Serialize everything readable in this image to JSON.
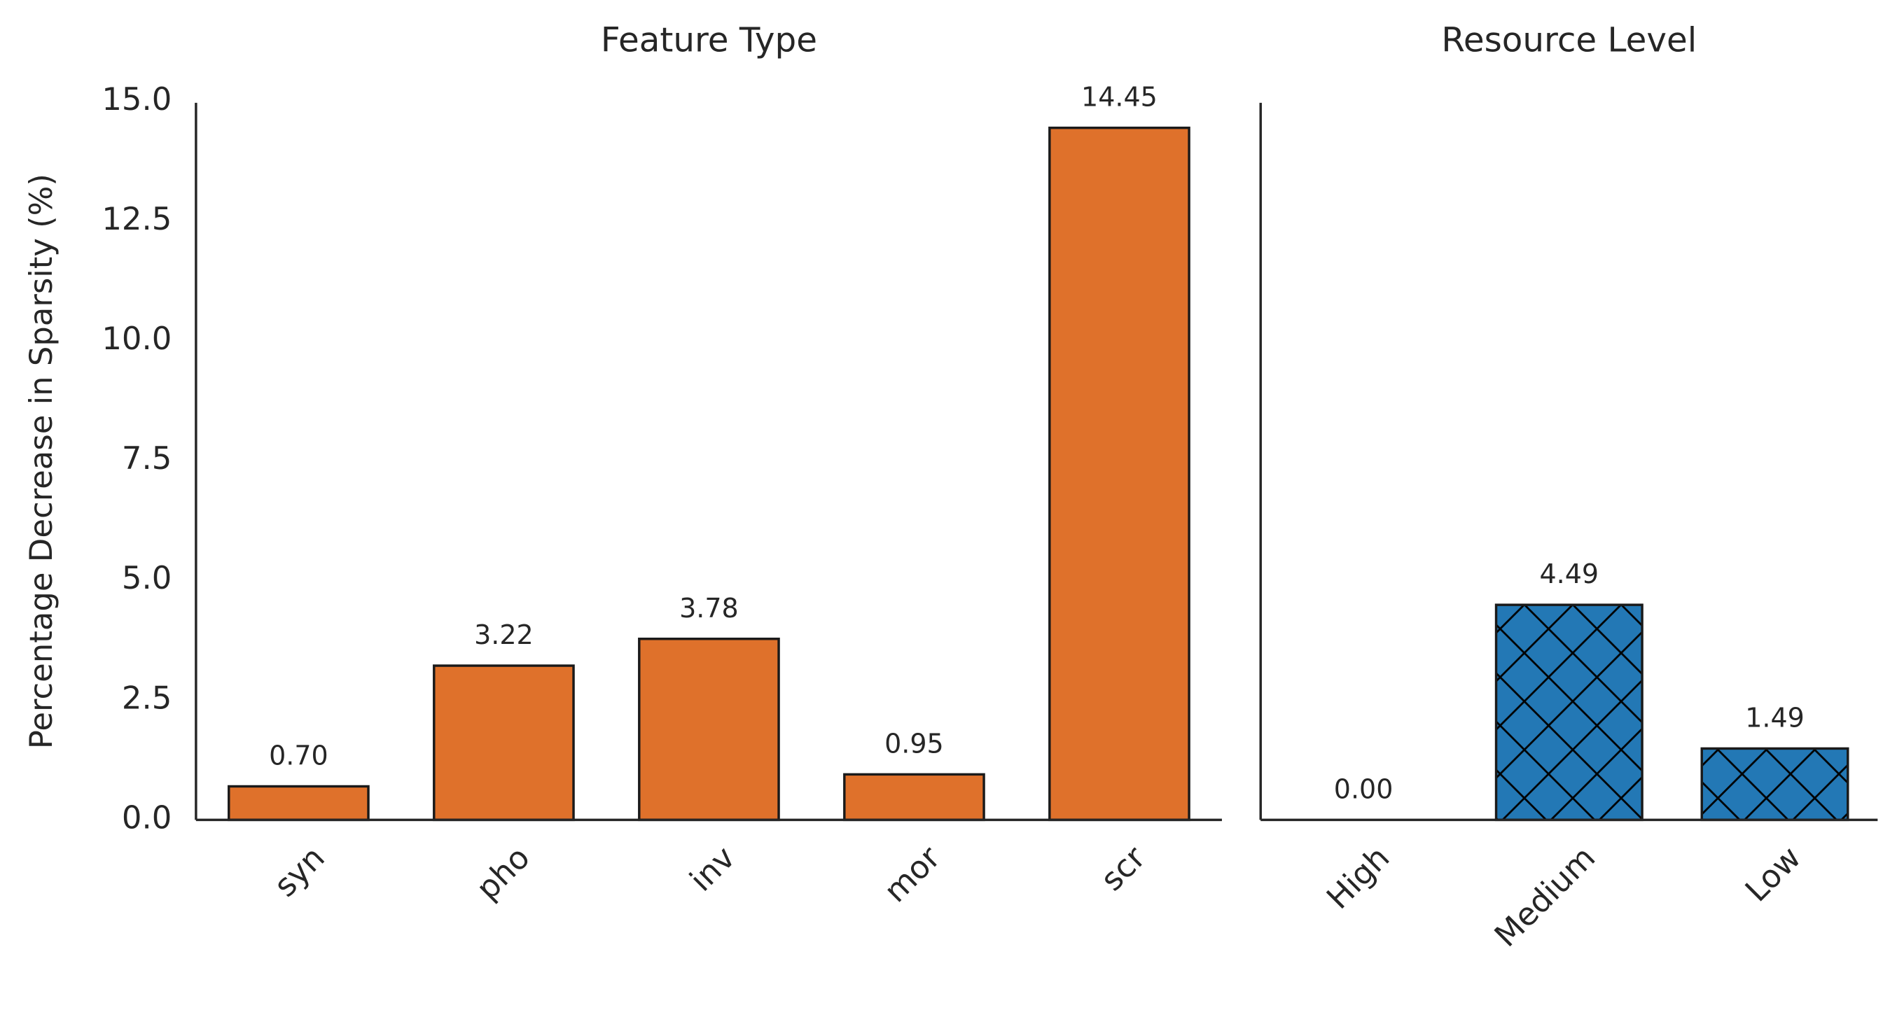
{
  "chart_data": [
    {
      "type": "bar",
      "title": "Feature Type",
      "ylabel": "Percentage Decrease in Sparsity (%)",
      "categories": [
        "syn",
        "pho",
        "inv",
        "mor",
        "scr"
      ],
      "values": [
        0.7,
        3.22,
        3.78,
        0.95,
        14.45
      ],
      "value_labels": [
        "0.70",
        "3.22",
        "3.78",
        "0.95",
        "14.45"
      ],
      "color": "#df712b",
      "ylim": [
        0,
        15.2
      ],
      "yticks": [
        {
          "value": 0,
          "label": "0.0"
        },
        2.5,
        {
          "value": 5,
          "label": "5.0"
        },
        7.5,
        {
          "value": 10,
          "label": "10.0"
        },
        12.5,
        {
          "value": 15,
          "label": "15.0"
        }
      ]
    },
    {
      "type": "bar",
      "title": "Resource Level",
      "categories": [
        "High",
        "Medium",
        "Low"
      ],
      "values": [
        0,
        4.49,
        1.49
      ],
      "value_labels": [
        "0.00",
        "4.49",
        "1.49"
      ],
      "color": "#2378b5",
      "hatch": "x",
      "ylim": [
        0,
        15.2
      ]
    }
  ]
}
